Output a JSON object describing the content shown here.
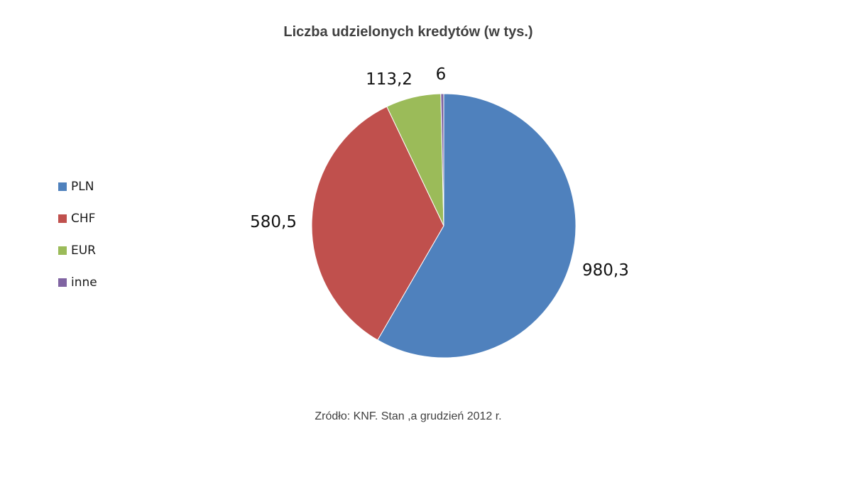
{
  "chart_data": {
    "type": "pie",
    "title": "Liczba udzielonych kredytów (w tys.)",
    "categories": [
      "PLN",
      "CHF",
      "EUR",
      "inne"
    ],
    "values": [
      980.3,
      580.5,
      113.2,
      6
    ],
    "value_labels": [
      "980,3",
      "580,5",
      "113,2",
      "6"
    ],
    "colors": [
      "#4f81bd",
      "#c0504d",
      "#9bbb59",
      "#8064a2"
    ],
    "legend": "left",
    "start_angle": "12 o'clock",
    "direction": "clockwise"
  },
  "source": "Zródło: KNF. Stan ,a grudzień 2012 r."
}
